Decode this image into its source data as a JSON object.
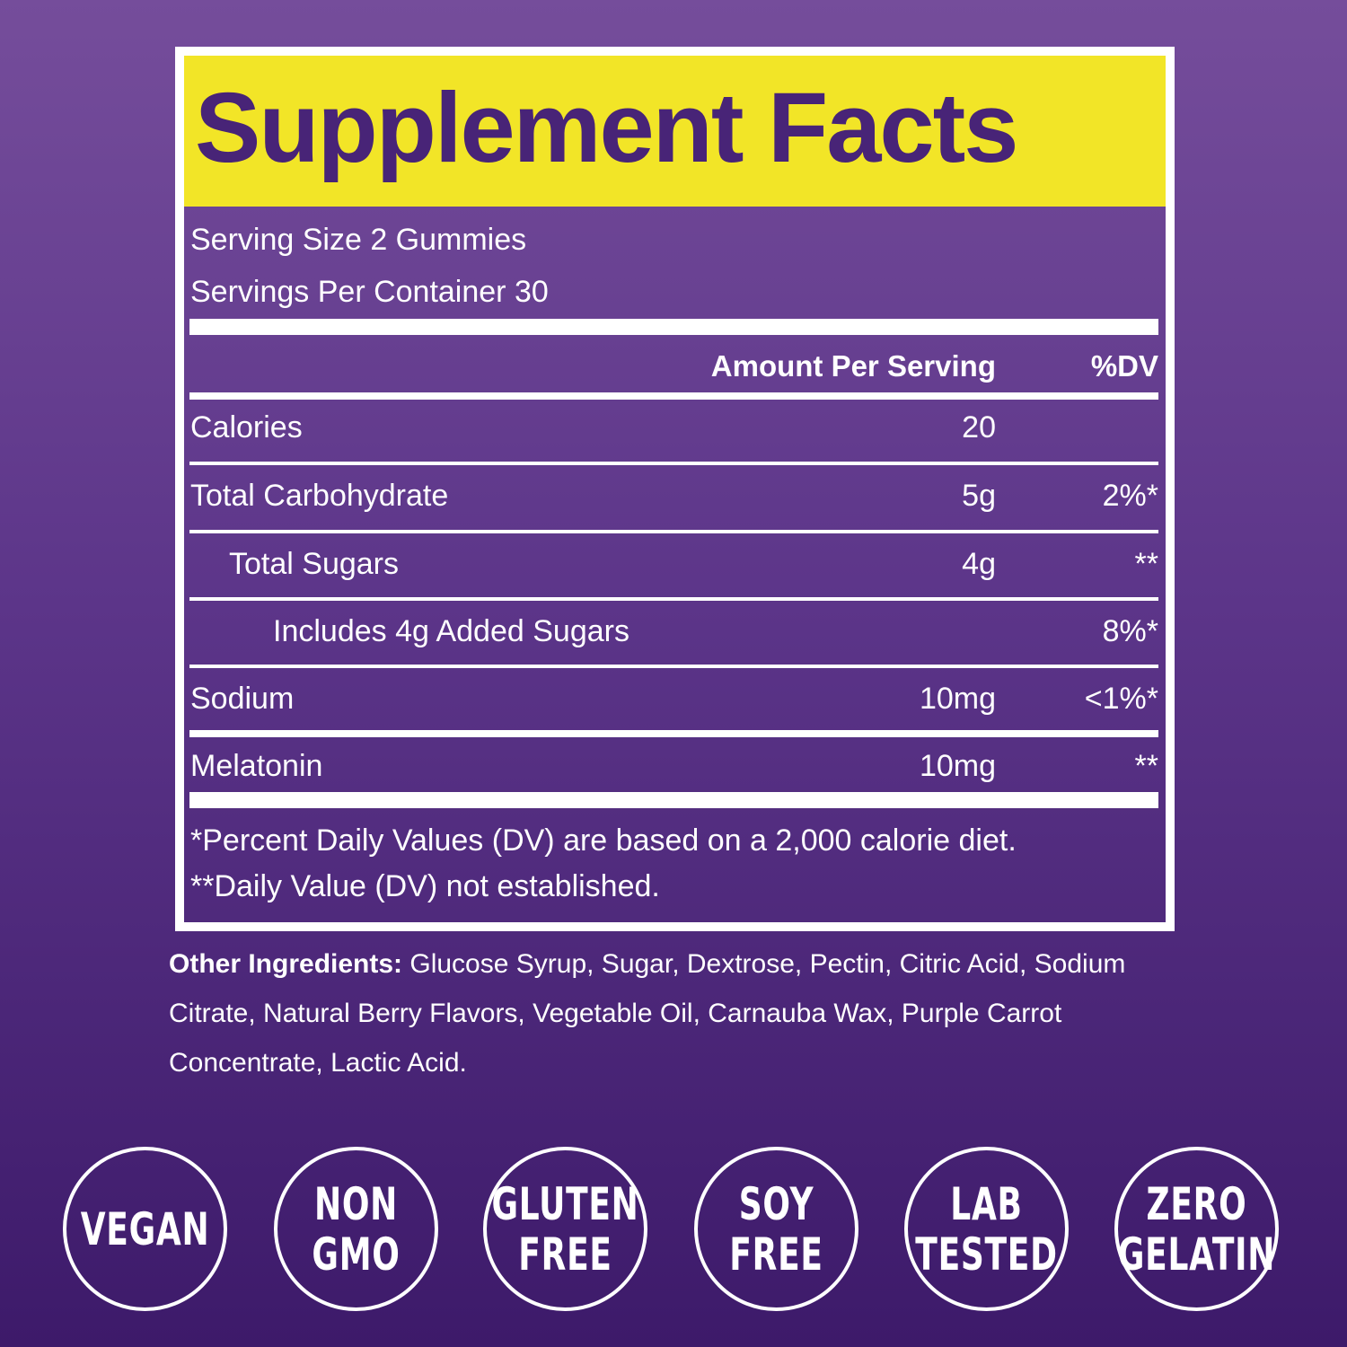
{
  "title": "Supplement Facts",
  "serving": {
    "size": "Serving Size 2 Gummies",
    "per_container": "Servings Per Container 30"
  },
  "header": {
    "amount": "Amount Per Serving",
    "dv": "%DV"
  },
  "rows": [
    {
      "name": "Calories",
      "amount": "20",
      "dv": ""
    },
    {
      "name": "Total Carbohydrate",
      "amount": "5g",
      "dv": "2%*"
    },
    {
      "name": "Total Sugars",
      "amount": "4g",
      "dv": "**"
    },
    {
      "name": "Includes 4g Added Sugars",
      "amount": "",
      "dv": "8%*"
    },
    {
      "name": "Sodium",
      "amount": "10mg",
      "dv": "<1%*"
    },
    {
      "name": "Melatonin",
      "amount": "10mg",
      "dv": "**"
    }
  ],
  "footnotes": [
    "*Percent Daily Values (DV) are based on a 2,000 calorie diet.",
    "**Daily Value (DV) not established."
  ],
  "ingredients": {
    "label": "Other Ingredients:",
    "text": "Glucose Syrup, Sugar, Dextrose, Pectin, Citric Acid, Sodium Citrate, Natural Berry Flavors, Vegetable Oil, Carnauba Wax, Purple Carrot Concentrate, Lactic Acid."
  },
  "badges": [
    {
      "line1": "VEGAN",
      "line2": ""
    },
    {
      "line1": "NON",
      "line2": "GMO"
    },
    {
      "line1": "GLUTEN",
      "line2": "FREE"
    },
    {
      "line1": "SOY",
      "line2": "FREE"
    },
    {
      "line1": "LAB",
      "line2": "TESTED"
    },
    {
      "line1": "ZERO",
      "line2": "GELATIN"
    }
  ],
  "colors": {
    "background_top": "#754d9b",
    "background_bottom": "#3d1a6a",
    "title_band": "#f2e527",
    "title_text": "#482477",
    "foreground": "#ffffff"
  }
}
